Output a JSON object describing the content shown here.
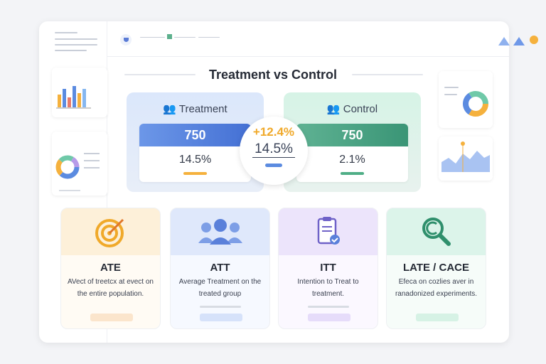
{
  "title": "Treatment vs Control",
  "treatment": {
    "label": "Treatment",
    "count": "750",
    "rate": "14.5%",
    "color": "#4f7fdc"
  },
  "control": {
    "label": "Control",
    "count": "750",
    "rate": "2.1%",
    "color": "#3f9e7e"
  },
  "difference": {
    "lift": "+12.4%",
    "value": "14.5%"
  },
  "cards": [
    {
      "title": "ATE",
      "desc": "AVect of treetcx at evect on the entire population.",
      "color": "#fdf0d9"
    },
    {
      "title": "ATT",
      "desc": "Average Treatment on the treated group",
      "color": "#dfe8fb"
    },
    {
      "title": "ITT",
      "desc": "Intention to Treat to treatment.",
      "color": "#ece4fb"
    },
    {
      "title": "LATE / CACE",
      "desc": "Efeca on cozlies aver in ranadonized experiments.",
      "color": "#dcf4ea"
    }
  ]
}
